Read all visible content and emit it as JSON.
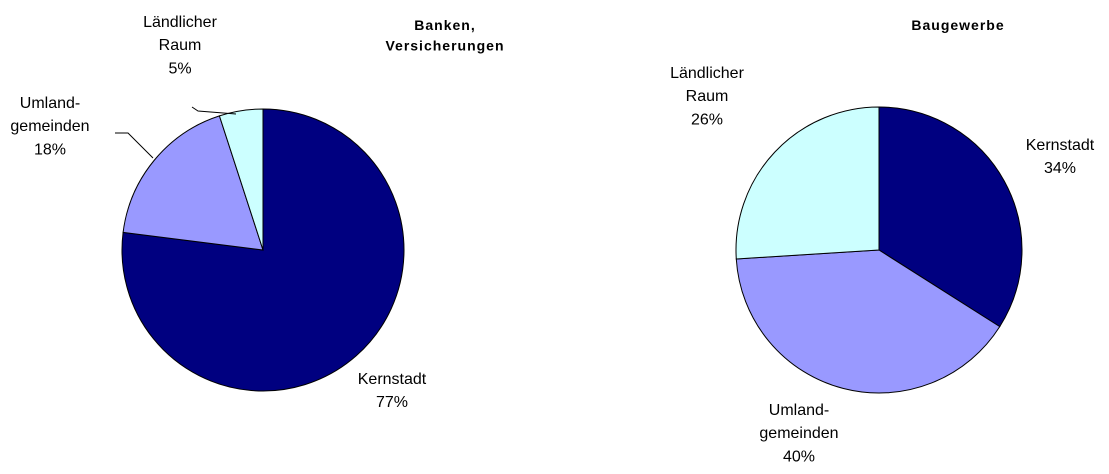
{
  "chart_data": [
    {
      "type": "pie",
      "title": "Banken, Versicherungen",
      "categories": [
        "Kernstadt",
        "Umland-gemeinden",
        "Ländlicher Raum"
      ],
      "values": [
        77,
        18,
        5
      ],
      "value_labels": [
        "77%",
        "18%",
        "5%"
      ],
      "colors": [
        "#000080",
        "#9999ff",
        "#ccffff"
      ]
    },
    {
      "type": "pie",
      "title": "Baugewerbe",
      "categories": [
        "Kernstadt",
        "Umland-gemeinden",
        "Ländlicher Raum"
      ],
      "values": [
        34,
        40,
        26
      ],
      "value_labels": [
        "34%",
        "40%",
        "26%"
      ],
      "colors": [
        "#000080",
        "#9999ff",
        "#ccffff"
      ]
    }
  ]
}
